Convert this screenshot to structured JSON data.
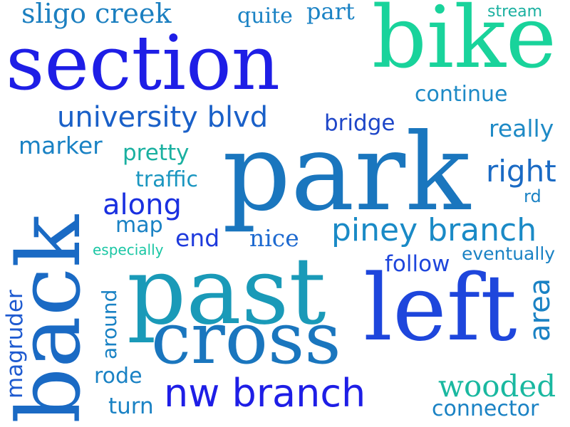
{
  "words": {
    "sligo_creek": {
      "text": "sligo creek",
      "color": "#1b7fc0"
    },
    "quite": {
      "text": "quite",
      "color": "#1a82c4"
    },
    "part": {
      "text": "part",
      "color": "#1a82c4"
    },
    "stream": {
      "text": "stream",
      "color": "#1ab0a0"
    },
    "section": {
      "text": "section",
      "color": "#1e1ee6"
    },
    "bike": {
      "text": "bike",
      "color": "#19d39b"
    },
    "continue": {
      "text": "continue",
      "color": "#1e8ac6"
    },
    "university_blvd": {
      "text": "university blvd",
      "color": "#1a60c8"
    },
    "bridge": {
      "text": "bridge",
      "color": "#1e46c8"
    },
    "really": {
      "text": "really",
      "color": "#1e8ac6"
    },
    "marker": {
      "text": "marker",
      "color": "#1a82c4"
    },
    "pretty": {
      "text": "pretty",
      "color": "#1ab0a0"
    },
    "park": {
      "text": "park",
      "color": "#1a76be"
    },
    "right": {
      "text": "right",
      "color": "#1a6ac4"
    },
    "traffic": {
      "text": "traffic",
      "color": "#1a96c0"
    },
    "rd": {
      "text": "rd",
      "color": "#1a82c4"
    },
    "along": {
      "text": "along",
      "color": "#1a30e0"
    },
    "map": {
      "text": "map",
      "color": "#1a82c4"
    },
    "end": {
      "text": "end",
      "color": "#1e3adc"
    },
    "nice": {
      "text": "nice",
      "color": "#1e6ad0"
    },
    "piney_branch": {
      "text": "piney branch",
      "color": "#1a8ac6"
    },
    "especially": {
      "text": "especially",
      "color": "#1ac6a4"
    },
    "follow": {
      "text": "follow",
      "color": "#1e46dc"
    },
    "eventually": {
      "text": "eventually",
      "color": "#1a82c4"
    },
    "back": {
      "text": "back",
      "color": "#1a6ac4"
    },
    "past": {
      "text": "past",
      "color": "#1a9ab8"
    },
    "left": {
      "text": "left",
      "color": "#1e46dc"
    },
    "area": {
      "text": "area",
      "color": "#1a82c4"
    },
    "magruder": {
      "text": "magruder",
      "color": "#1e5ad0"
    },
    "around": {
      "text": "around",
      "color": "#1a82c4"
    },
    "cross": {
      "text": "cross",
      "color": "#1a76be"
    },
    "rode": {
      "text": "rode",
      "color": "#1a82c4"
    },
    "nw_branch": {
      "text": "nw branch",
      "color": "#1e1ee6"
    },
    "wooded": {
      "text": "wooded",
      "color": "#1ab8a0"
    },
    "turn": {
      "text": "turn",
      "color": "#1a82c4"
    },
    "connector": {
      "text": "connector",
      "color": "#1a82c4"
    }
  }
}
